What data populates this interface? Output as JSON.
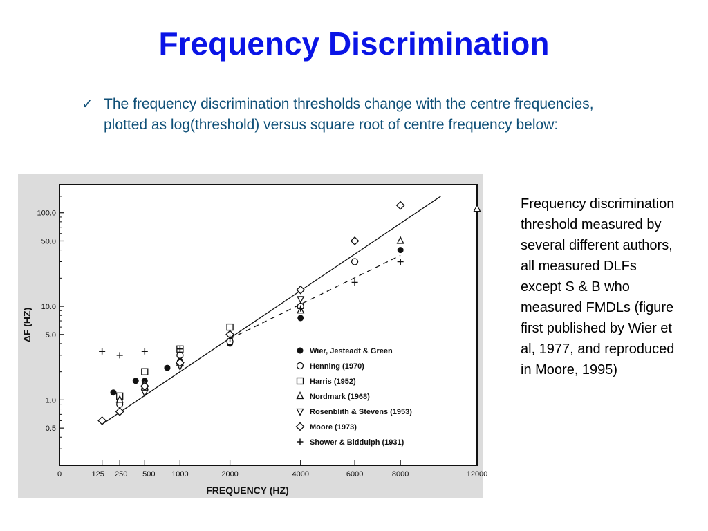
{
  "slide": {
    "title": "Frequency Discrimination",
    "bullet_text": "The frequency discrimination thresholds change with the centre frequencies, plotted as log(threshold) versus square root of centre frequency below:",
    "caption": "Frequency discrimination threshold measured by several different authors, all measured DLFs except S & B who measured FMDLs (figure first published by Wier et al, 1977, and reproduced in Moore, 1995)",
    "colors": {
      "title": "#0a14e6",
      "bullet": "#0f4f77",
      "caption": "#000000"
    }
  },
  "chart_data": {
    "type": "scatter",
    "xlabel": "FREQUENCY (HZ)",
    "ylabel": "ΔF (HZ)",
    "x_scale": "sqrt",
    "y_scale": "log",
    "xlim": [
      0,
      12000
    ],
    "ylim": [
      0.2,
      200
    ],
    "x_ticks": [
      0,
      125,
      250,
      500,
      1000,
      2000,
      4000,
      6000,
      8000,
      12000
    ],
    "x_tick_labels": [
      "0",
      "125",
      "250",
      "500",
      "1000",
      "2000",
      "4000",
      "6000",
      "8000",
      "12000"
    ],
    "y_ticks": [
      0.5,
      1.0,
      5.0,
      10.0,
      50.0,
      100.0
    ],
    "y_tick_labels": [
      "0.5",
      "1.0",
      "5.0",
      "10.0",
      "50.0",
      "100.0"
    ],
    "legend_position": "center-right",
    "series": [
      {
        "name": "Wier, Jesteadt & Green",
        "marker": "filled-circle",
        "points": [
          [
            200,
            1.2
          ],
          [
            250,
            1.0
          ],
          [
            400,
            1.6
          ],
          [
            500,
            1.6
          ],
          [
            800,
            2.2
          ],
          [
            1000,
            2.6
          ],
          [
            2000,
            4.0
          ],
          [
            4000,
            7.5
          ],
          [
            8000,
            40
          ]
        ]
      },
      {
        "name": "Henning (1970)",
        "marker": "open-circle",
        "points": [
          [
            250,
            0.9
          ],
          [
            500,
            1.3
          ],
          [
            1000,
            3.0
          ],
          [
            2000,
            4.2
          ],
          [
            4000,
            10
          ],
          [
            6000,
            30
          ]
        ]
      },
      {
        "name": "Harris (1952)",
        "marker": "open-square",
        "points": [
          [
            250,
            1.1
          ],
          [
            500,
            2.0
          ],
          [
            1000,
            3.5
          ],
          [
            2000,
            6.0
          ]
        ]
      },
      {
        "name": "Nordmark (1968)",
        "marker": "open-triangle-up",
        "points": [
          [
            250,
            1.0
          ],
          [
            500,
            1.5
          ],
          [
            1000,
            2.5
          ],
          [
            4000,
            9
          ],
          [
            8000,
            50
          ],
          [
            12000,
            110
          ]
        ]
      },
      {
        "name": "Rosenblith & Stevens (1953)",
        "marker": "open-triangle-down",
        "points": [
          [
            500,
            1.2
          ],
          [
            1000,
            2.3
          ],
          [
            4000,
            12
          ]
        ]
      },
      {
        "name": "Moore (1973)",
        "marker": "open-diamond",
        "points": [
          [
            125,
            0.6
          ],
          [
            250,
            0.75
          ],
          [
            500,
            1.4
          ],
          [
            1000,
            2.5
          ],
          [
            2000,
            5
          ],
          [
            4000,
            15
          ],
          [
            6000,
            50
          ],
          [
            8000,
            120
          ]
        ]
      },
      {
        "name": "Shower & Biddulph (1931)",
        "marker": "plus",
        "points": [
          [
            125,
            3.3
          ],
          [
            250,
            3.0
          ],
          [
            500,
            3.3
          ],
          [
            1000,
            3.5
          ],
          [
            2000,
            4.5
          ],
          [
            4000,
            9.5
          ],
          [
            6000,
            18
          ],
          [
            8000,
            30
          ]
        ]
      }
    ],
    "fit_lines": [
      {
        "style": "solid",
        "points": [
          [
            125,
            0.55
          ],
          [
            10000,
            150
          ]
        ]
      },
      {
        "style": "dashed",
        "points": [
          [
            2000,
            4.5
          ],
          [
            8000,
            35
          ]
        ]
      }
    ]
  }
}
